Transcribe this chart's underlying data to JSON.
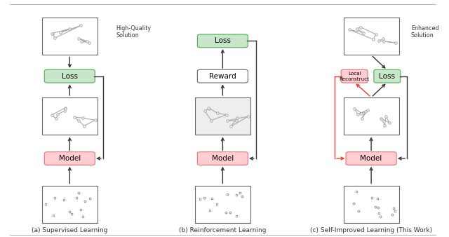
{
  "bg_color": "#ffffff",
  "border_color": "#555555",
  "green_fill": "#c8e6c9",
  "green_border": "#4caf50",
  "pink_fill": "#ffcdd2",
  "pink_border": "#e57373",
  "red_arrow": "#e53935",
  "black_arrow": "#333333",
  "captions": [
    "(a) Supervised Learning",
    "(b) Reinforcement Learning",
    "(c) Self-Improved Learning (This Work)"
  ]
}
